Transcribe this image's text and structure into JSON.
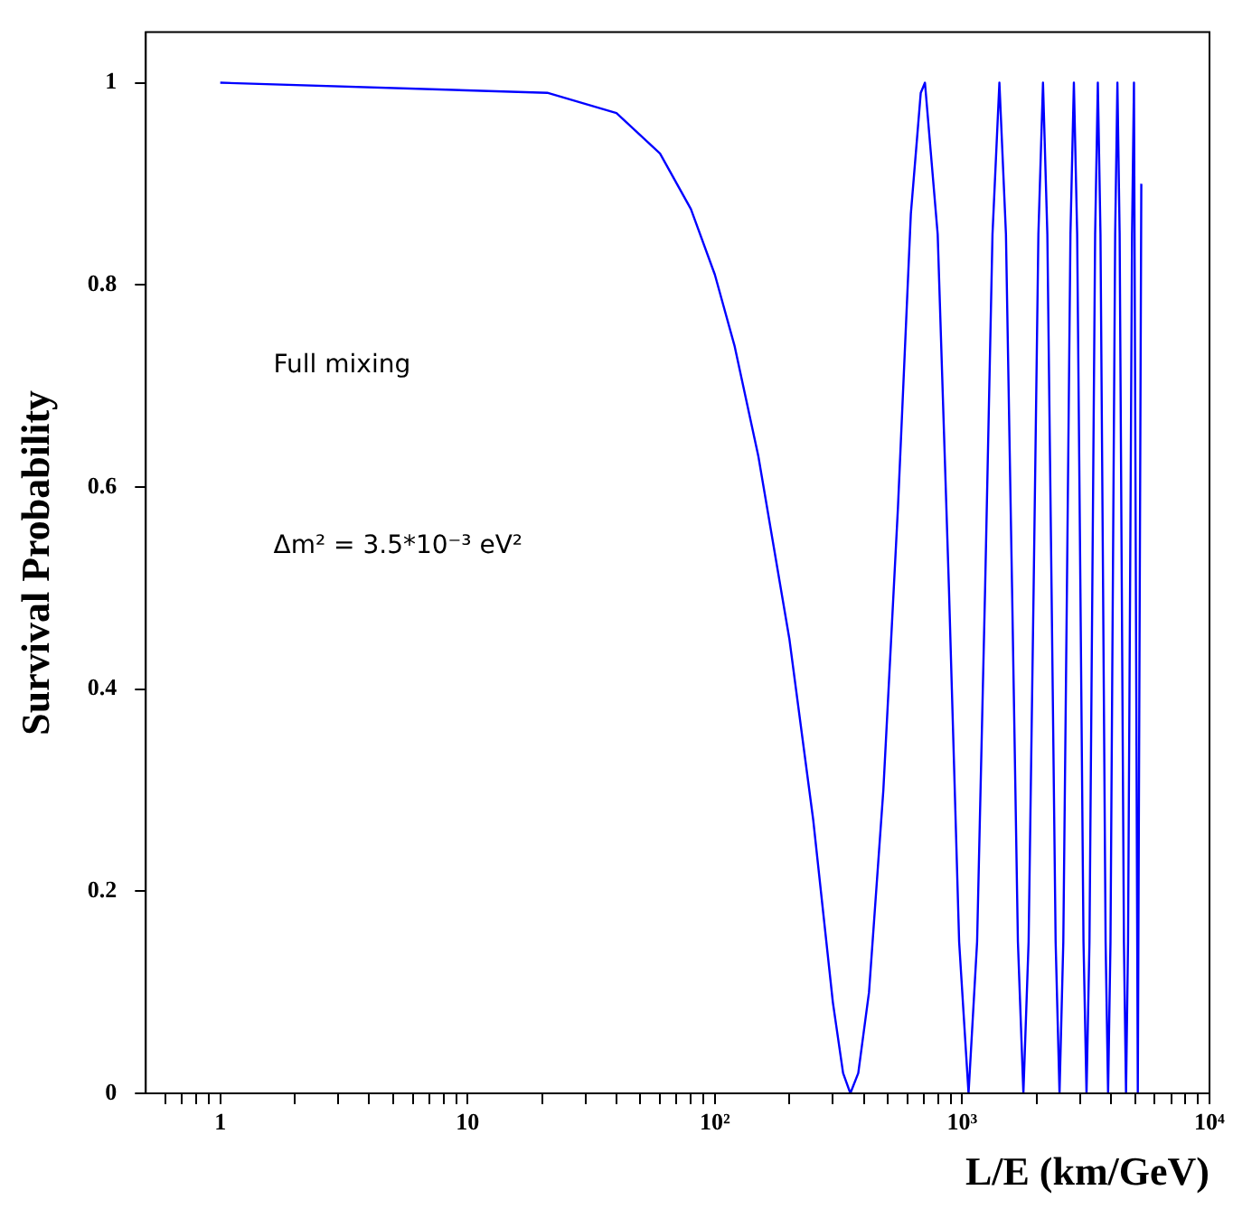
{
  "chart_data": {
    "type": "line",
    "xlabel": "L/E (km/GeV)",
    "ylabel": "Survival Probability",
    "log": "x",
    "grid": false,
    "legend": false,
    "marker": "none",
    "line_style": "solid",
    "annotations": [
      "Full mixing",
      "Δm² = 3.5*10⁻³ eV²"
    ],
    "xlim": [
      0.5,
      10000
    ],
    "xticks": [
      {
        "value": 0.6,
        "label": null
      },
      {
        "value": 0.7,
        "label": null
      },
      {
        "value": 0.8,
        "label": null
      },
      {
        "value": 0.9,
        "label": null
      },
      1,
      {
        "value": 2,
        "label": null
      },
      {
        "value": 3,
        "label": null
      },
      {
        "value": 4,
        "label": null
      },
      {
        "value": 5,
        "label": null
      },
      {
        "value": 6,
        "label": null
      },
      {
        "value": 7,
        "label": null
      },
      {
        "value": 8,
        "label": null
      },
      {
        "value": 9,
        "label": null
      },
      10,
      {
        "value": 20,
        "label": null
      },
      {
        "value": 30,
        "label": null
      },
      {
        "value": 40,
        "label": null
      },
      {
        "value": 50,
        "label": null
      },
      {
        "value": 60,
        "label": null
      },
      {
        "value": 70,
        "label": null
      },
      {
        "value": 80,
        "label": null
      },
      {
        "value": 90,
        "label": null
      },
      {
        "value": 100,
        "label": "10²"
      },
      {
        "value": 200,
        "label": null
      },
      {
        "value": 300,
        "label": null
      },
      {
        "value": 400,
        "label": null
      },
      {
        "value": 500,
        "label": null
      },
      {
        "value": 600,
        "label": null
      },
      {
        "value": 700,
        "label": null
      },
      {
        "value": 800,
        "label": null
      },
      {
        "value": 900,
        "label": null
      },
      {
        "value": 1000,
        "label": "10³"
      },
      {
        "value": 2000,
        "label": null
      },
      {
        "value": 3000,
        "label": null
      },
      {
        "value": 4000,
        "label": null
      },
      {
        "value": 5000,
        "label": null
      },
      {
        "value": 6000,
        "label": null
      },
      {
        "value": 7000,
        "label": null
      },
      {
        "value": 8000,
        "label": null
      },
      {
        "value": 9000,
        "label": null
      },
      {
        "value": 10000,
        "label": "10⁴"
      }
    ],
    "ylim": [
      0,
      1.05
    ],
    "yticks": [
      0,
      0.2,
      0.4,
      0.6,
      0.8,
      1
    ],
    "series": [
      {
        "color": "#0000ff",
        "x": [
          1,
          21,
          40,
          60,
          80,
          100,
          120,
          150,
          200,
          250,
          300,
          330,
          353,
          380,
          420,
          480,
          550,
          620,
          680,
          707,
          796,
          884,
          972,
          1061,
          1149,
          1238,
          1326,
          1414,
          1503,
          1591,
          1680,
          1768,
          1856,
          1945,
          2033,
          2122,
          2210,
          2298,
          2387,
          2475,
          2564,
          2652,
          2740,
          2829,
          2917,
          3006,
          3094,
          3182,
          3271,
          3359,
          3448,
          3536,
          3624,
          3713,
          3801,
          3890,
          3978,
          4066,
          4155,
          4243,
          4332,
          4420,
          4508,
          4597,
          4685,
          4774,
          4862,
          4950,
          5130,
          5300
        ],
        "values": [
          1,
          0.99,
          0.97,
          0.93,
          0.875,
          0.81,
          0.74,
          0.63,
          0.45,
          0.27,
          0.09,
          0.02,
          0,
          0.02,
          0.1,
          0.3,
          0.58,
          0.87,
          0.99,
          1,
          0.85,
          0.5,
          0.15,
          0,
          0.15,
          0.5,
          0.85,
          1,
          0.85,
          0.5,
          0.15,
          0,
          0.15,
          0.5,
          0.85,
          1,
          0.85,
          0.5,
          0.15,
          0,
          0.15,
          0.5,
          0.85,
          1,
          0.85,
          0.5,
          0.15,
          0,
          0.15,
          0.5,
          0.85,
          1,
          0.85,
          0.5,
          0.15,
          0,
          0.15,
          0.5,
          0.85,
          1,
          0.85,
          0.5,
          0.15,
          0,
          0.15,
          0.5,
          0.85,
          1,
          0,
          0.9
        ]
      }
    ]
  }
}
